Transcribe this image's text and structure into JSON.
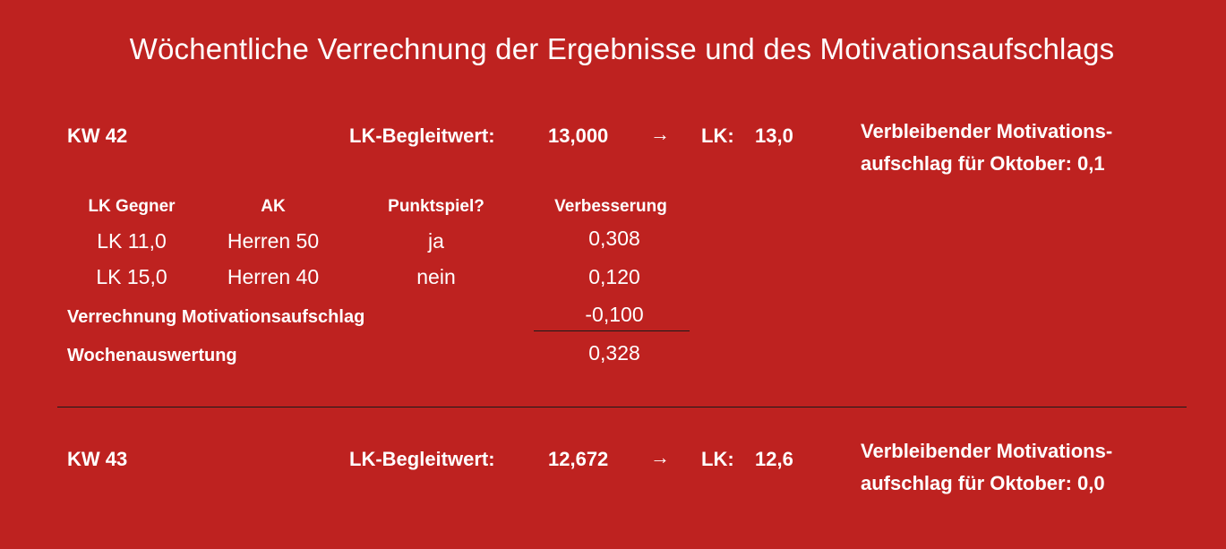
{
  "title": "Wöchentliche Verrechnung der Ergebnisse und des Motivationsaufschlags",
  "weeks": [
    {
      "kw": "KW 42",
      "begleit_label": "LK-Begleitwert:",
      "begleit_value": "13,000",
      "arrow": "→",
      "lk_label": "LK:",
      "lk_value": "13,0",
      "remaining_line1": "Verbleibender Motivations-",
      "remaining_line2": "aufschlag für Oktober: 0,1"
    },
    {
      "kw": "KW 43",
      "begleit_label": "LK-Begleitwert:",
      "begleit_value": "12,672",
      "arrow": "→",
      "lk_label": "LK:",
      "lk_value": "12,6",
      "remaining_line1": "Verbleibender Motivations-",
      "remaining_line2": "aufschlag für Oktober: 0,0"
    }
  ],
  "table": {
    "headers": [
      "LK Gegner",
      "AK",
      "Punktspiel?",
      "Verbesserung"
    ],
    "rows": [
      [
        "LK 11,0",
        "Herren 50",
        "ja",
        "0,308"
      ],
      [
        "LK 15,0",
        "Herren 40",
        "nein",
        "0,120"
      ]
    ],
    "motivation_label": "Verrechnung Motivationsaufschlag",
    "motivation_value": "-0,100",
    "summary_label": "Wochenauswertung",
    "summary_value": "0,328"
  }
}
